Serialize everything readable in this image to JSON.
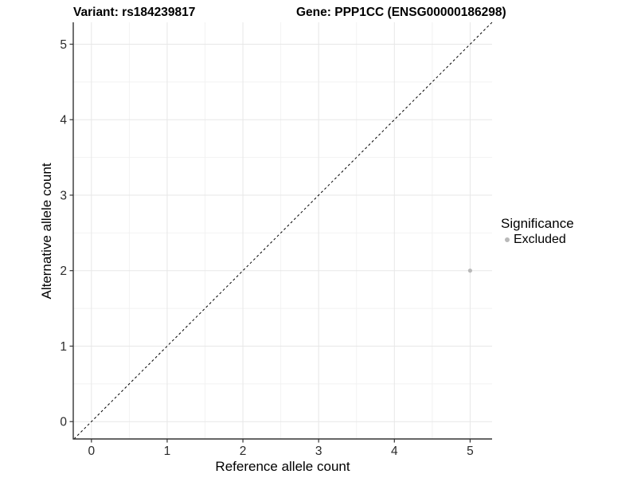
{
  "header": {
    "variant_title": "Variant: rs184239817",
    "gene_title": "Gene: PPP1CC (ENSG00000186298)"
  },
  "chart_data": {
    "type": "scatter",
    "title": {
      "left": "Variant: rs184239817",
      "right": "Gene: PPP1CC (ENSG00000186298)"
    },
    "xlabel": "Reference allele count",
    "ylabel": "Alternative allele count",
    "xlim": [
      -0.24,
      5.29
    ],
    "ylim": [
      -0.23,
      5.29
    ],
    "xticks": [
      0,
      1,
      2,
      3,
      4,
      5
    ],
    "yticks": [
      0,
      1,
      2,
      3,
      4,
      5
    ],
    "grid": {
      "major": true,
      "minor": true
    },
    "reference_line": {
      "type": "identity",
      "equation": "y = x",
      "style": "dashed",
      "color": "#000000"
    },
    "legend": {
      "title": "Significance",
      "position": "right",
      "entries": [
        {
          "label": "Excluded",
          "color": "#b9b9b9"
        }
      ]
    },
    "series": [
      {
        "name": "Excluded",
        "color": "#b9b9b9",
        "points": [
          {
            "x": 5,
            "y": 2
          }
        ]
      }
    ],
    "colors": {
      "background": "#ffffff",
      "grid_major": "#e7e7e7",
      "grid_minor": "#f2f2f2",
      "axis_line": "#333333",
      "tick_text": "#2b2b2b",
      "point": "#b9b9b9"
    }
  }
}
